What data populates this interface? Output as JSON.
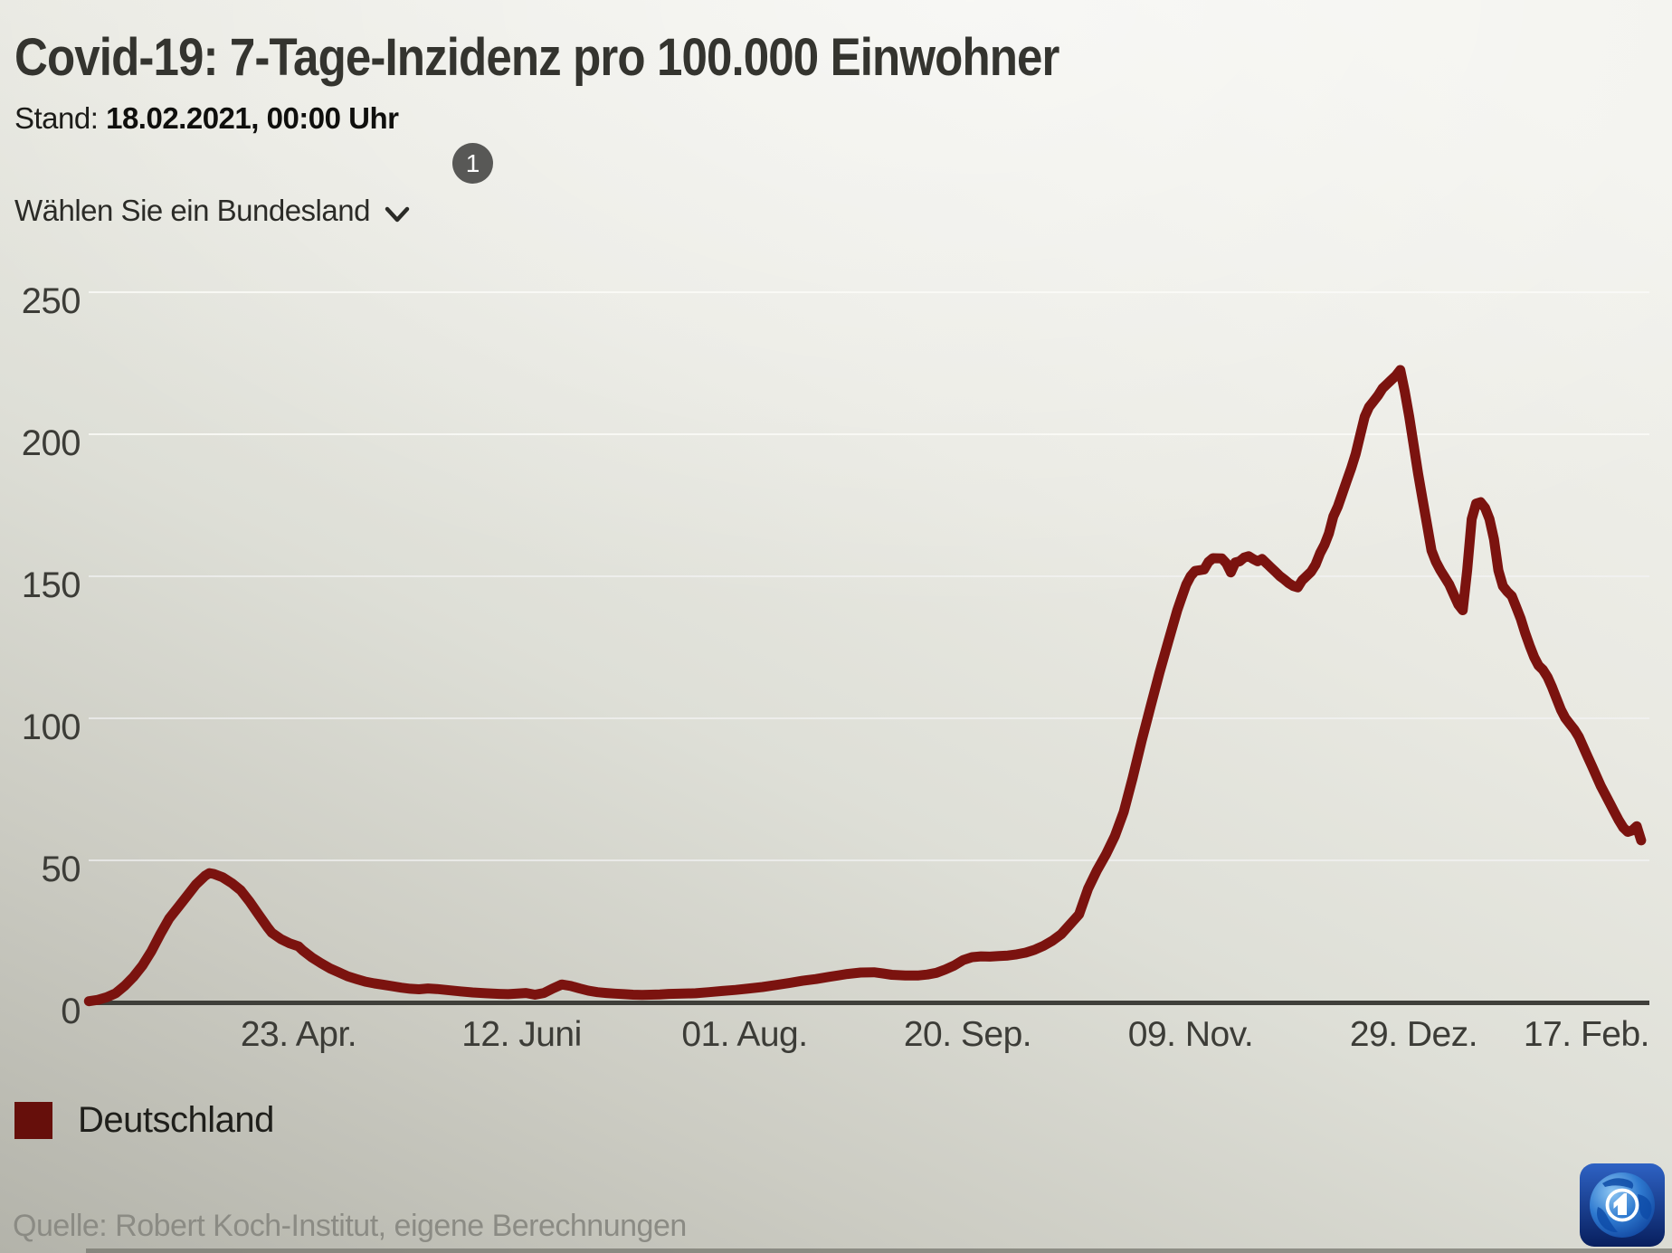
{
  "header": {
    "title": "Covid-19: 7-Tage-Inzidenz pro 100.000 Einwohner",
    "stand_label": "Stand:",
    "stand_value": "18.02.2021, 00:00 Uhr"
  },
  "controls": {
    "dropdown_label": "Wählen Sie ein Bundesland",
    "badge_count": "1",
    "chevron_icon": "chevron-down"
  },
  "legend": {
    "label": "Deutschland",
    "swatch_color": "#660f0b"
  },
  "source": {
    "text": "Quelle: Robert Koch-Institut, eigene Berechnungen"
  },
  "logo": {
    "name": "ARD Das Erste",
    "accent_color": "#1a4fae"
  },
  "chart_data": {
    "type": "line",
    "title": "Covid-19: 7-Tage-Inzidenz pro 100.000 Einwohner",
    "ylabel": "",
    "xlabel": "",
    "ylim": [
      0,
      250
    ],
    "grid": "horizontal",
    "legend_position": "bottom-left",
    "y_ticks": [
      0,
      50,
      100,
      150,
      200,
      250
    ],
    "x_start_date": "2020-03-07",
    "x_ticks": [
      {
        "day": 47,
        "label": "23. Apr."
      },
      {
        "day": 97,
        "label": "12. Juni"
      },
      {
        "day": 147,
        "label": "01. Aug."
      },
      {
        "day": 197,
        "label": "20. Sep."
      },
      {
        "day": 247,
        "label": "09. Nov."
      },
      {
        "day": 297,
        "label": "29. Dez."
      },
      {
        "day": 347,
        "label": "17. Feb."
      }
    ],
    "series": [
      {
        "name": "Deutschland",
        "color": "#7b130f",
        "points": [
          [
            0,
            0.4
          ],
          [
            2,
            0.9
          ],
          [
            4,
            1.8
          ],
          [
            6,
            3.2
          ],
          [
            8,
            5.8
          ],
          [
            10,
            9
          ],
          [
            12,
            13
          ],
          [
            14,
            18
          ],
          [
            16,
            24
          ],
          [
            18,
            29.5
          ],
          [
            20,
            33.5
          ],
          [
            22,
            37.5
          ],
          [
            24,
            41.5
          ],
          [
            26,
            44.5
          ],
          [
            27,
            45.5
          ],
          [
            28,
            45.2
          ],
          [
            30,
            44
          ],
          [
            32,
            42
          ],
          [
            34,
            39.5
          ],
          [
            36,
            35.5
          ],
          [
            38,
            31
          ],
          [
            40,
            26.5
          ],
          [
            41,
            24.5
          ],
          [
            43,
            22.3
          ],
          [
            45,
            20.8
          ],
          [
            47,
            19.7
          ],
          [
            48,
            18.2
          ],
          [
            50,
            15.8
          ],
          [
            52,
            13.8
          ],
          [
            54,
            12
          ],
          [
            56,
            10.6
          ],
          [
            58,
            9.2
          ],
          [
            60,
            8.2
          ],
          [
            62,
            7.3
          ],
          [
            64,
            6.7
          ],
          [
            66,
            6.2
          ],
          [
            68,
            5.7
          ],
          [
            70,
            5.2
          ],
          [
            72,
            4.8
          ],
          [
            74,
            4.6
          ],
          [
            76,
            4.9
          ],
          [
            78,
            4.7
          ],
          [
            80,
            4.4
          ],
          [
            83,
            3.9
          ],
          [
            86,
            3.5
          ],
          [
            89,
            3.2
          ],
          [
            92,
            3
          ],
          [
            94,
            2.9
          ],
          [
            96,
            3.1
          ],
          [
            98,
            3.3
          ],
          [
            100,
            2.7
          ],
          [
            102,
            3.3
          ],
          [
            104,
            4.9
          ],
          [
            106,
            6.3
          ],
          [
            108,
            5.8
          ],
          [
            110,
            4.9
          ],
          [
            112,
            4.1
          ],
          [
            114,
            3.6
          ],
          [
            116,
            3.3
          ],
          [
            118,
            3.1
          ],
          [
            120,
            2.9
          ],
          [
            122,
            2.7
          ],
          [
            124,
            2.6
          ],
          [
            126,
            2.7
          ],
          [
            128,
            2.8
          ],
          [
            130,
            3
          ],
          [
            133,
            3.1
          ],
          [
            136,
            3.2
          ],
          [
            139,
            3.6
          ],
          [
            142,
            4
          ],
          [
            145,
            4.4
          ],
          [
            148,
            4.9
          ],
          [
            151,
            5.4
          ],
          [
            154,
            6.1
          ],
          [
            157,
            6.8
          ],
          [
            160,
            7.6
          ],
          [
            163,
            8.2
          ],
          [
            166,
            9
          ],
          [
            168,
            9.5
          ],
          [
            170,
            10
          ],
          [
            173,
            10.5
          ],
          [
            176,
            10.6
          ],
          [
            178,
            10.2
          ],
          [
            180,
            9.7
          ],
          [
            183,
            9.5
          ],
          [
            186,
            9.5
          ],
          [
            188,
            9.8
          ],
          [
            190,
            10.4
          ],
          [
            192,
            11.6
          ],
          [
            194,
            13
          ],
          [
            196,
            14.9
          ],
          [
            198,
            15.9
          ],
          [
            200,
            16.2
          ],
          [
            202,
            16.1
          ],
          [
            204,
            16.3
          ],
          [
            206,
            16.5
          ],
          [
            208,
            16.9
          ],
          [
            210,
            17.5
          ],
          [
            212,
            18.5
          ],
          [
            214,
            19.9
          ],
          [
            216,
            21.7
          ],
          [
            218,
            24
          ],
          [
            220,
            27.5
          ],
          [
            222,
            31
          ],
          [
            224,
            40
          ],
          [
            226,
            46.5
          ],
          [
            228,
            52
          ],
          [
            230,
            58.5
          ],
          [
            232,
            67
          ],
          [
            234,
            79
          ],
          [
            236,
            92
          ],
          [
            238,
            104
          ],
          [
            240,
            116
          ],
          [
            242,
            127
          ],
          [
            244,
            138
          ],
          [
            245,
            142.5
          ],
          [
            246,
            147
          ],
          [
            247,
            150
          ],
          [
            248,
            151.8
          ],
          [
            250,
            152.3
          ],
          [
            251,
            155
          ],
          [
            252,
            156.3
          ],
          [
            254,
            156.2
          ],
          [
            255,
            154.5
          ],
          [
            256,
            151.3
          ],
          [
            257,
            154.8
          ],
          [
            258,
            155.2
          ],
          [
            259,
            156.5
          ],
          [
            260,
            157
          ],
          [
            261,
            156
          ],
          [
            262,
            155.2
          ],
          [
            263,
            156
          ],
          [
            264,
            154.5
          ],
          [
            265,
            153
          ],
          [
            266,
            151.5
          ],
          [
            267,
            150
          ],
          [
            268,
            148.8
          ],
          [
            269,
            147.5
          ],
          [
            270,
            146.5
          ],
          [
            271,
            146
          ],
          [
            272,
            148.5
          ],
          [
            274,
            151.5
          ],
          [
            275,
            154
          ],
          [
            276,
            158
          ],
          [
            277,
            161
          ],
          [
            278,
            165
          ],
          [
            279,
            171
          ],
          [
            280,
            174.5
          ],
          [
            281,
            179
          ],
          [
            282,
            183.5
          ],
          [
            283,
            188
          ],
          [
            284,
            193
          ],
          [
            285,
            199.5
          ],
          [
            286,
            206
          ],
          [
            287,
            209.5
          ],
          [
            288,
            211.5
          ],
          [
            289,
            213.5
          ],
          [
            290,
            216
          ],
          [
            291,
            217.5
          ],
          [
            292,
            219
          ],
          [
            293,
            220.5
          ],
          [
            294,
            222.5
          ],
          [
            295,
            215
          ],
          [
            296,
            206
          ],
          [
            297,
            196
          ],
          [
            298,
            186
          ],
          [
            299,
            177
          ],
          [
            300,
            168
          ],
          [
            301,
            159
          ],
          [
            302,
            155
          ],
          [
            303,
            152
          ],
          [
            304,
            149.5
          ],
          [
            305,
            147
          ],
          [
            306,
            143.5
          ],
          [
            307,
            140
          ],
          [
            308,
            138
          ],
          [
            309,
            152
          ],
          [
            310,
            170
          ],
          [
            311,
            175.5
          ],
          [
            312,
            176
          ],
          [
            313,
            174
          ],
          [
            314,
            170
          ],
          [
            315,
            163
          ],
          [
            316,
            152
          ],
          [
            317,
            146.5
          ],
          [
            318,
            144.5
          ],
          [
            319,
            143
          ],
          [
            320,
            139
          ],
          [
            321,
            135
          ],
          [
            322,
            130
          ],
          [
            323,
            125.5
          ],
          [
            324,
            121.5
          ],
          [
            325,
            118.5
          ],
          [
            326,
            117
          ],
          [
            327,
            114.5
          ],
          [
            328,
            111
          ],
          [
            329,
            107
          ],
          [
            330,
            103
          ],
          [
            331,
            100
          ],
          [
            332,
            98
          ],
          [
            333,
            96
          ],
          [
            334,
            93.5
          ],
          [
            335,
            90
          ],
          [
            336,
            86.5
          ],
          [
            337,
            83
          ],
          [
            338,
            79.5
          ],
          [
            339,
            76
          ],
          [
            340,
            73
          ],
          [
            341,
            70
          ],
          [
            342,
            67
          ],
          [
            343,
            64
          ],
          [
            344,
            61.5
          ],
          [
            345,
            60
          ],
          [
            346,
            60.5
          ],
          [
            347,
            62
          ],
          [
            348,
            57
          ]
        ]
      }
    ]
  }
}
